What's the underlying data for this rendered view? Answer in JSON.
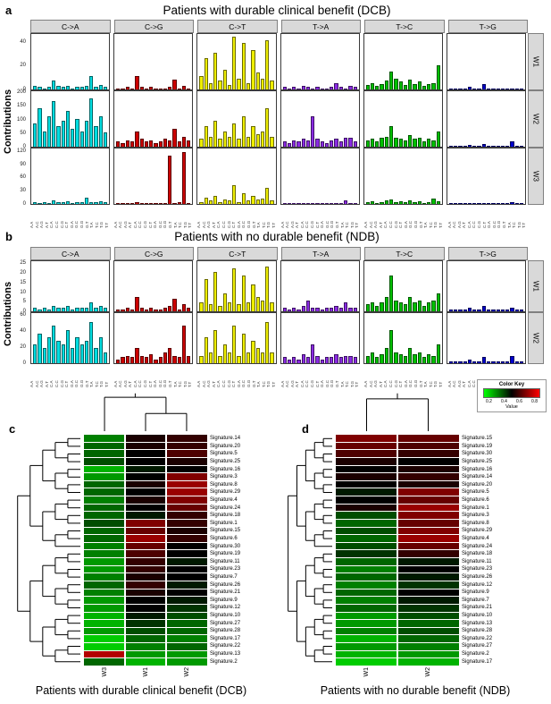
{
  "figure": {
    "panel_a_label": "a",
    "panel_b_label": "b",
    "panel_c_label": "c",
    "panel_d_label": "d"
  },
  "color_key": {
    "title": "Color Key",
    "ticks": [
      "0.2",
      "0.4",
      "0.6",
      "0.8"
    ],
    "value_label": "Value"
  },
  "chart_data": [
    {
      "id": "panel_a",
      "type": "bar",
      "title": "Patients with durable clinical benefit (DCB)",
      "ylabel": "Contributions",
      "facet_cols": [
        "C->A",
        "C->G",
        "C->T",
        "T->A",
        "T->C",
        "T->G"
      ],
      "facet_col_colors": {
        "C->A": "#00dde0",
        "C->G": "#cc0000",
        "C->T": "#eeee00",
        "T->A": "#8a2be2",
        "T->C": "#00c000",
        "T->G": "#0000cc"
      },
      "x": [
        "A.A",
        "A.C",
        "A.G",
        "A.T",
        "C.A",
        "C.C",
        "C.G",
        "C.T",
        "G.A",
        "G.C",
        "G.G",
        "G.T",
        "T.A",
        "T.C",
        "T.G",
        "T.T"
      ],
      "rows": [
        {
          "label": "W1",
          "ylim": [
            0,
            48
          ],
          "yticks": [
            0,
            20,
            40
          ],
          "series": {
            "C->A": [
              3,
              2,
              1,
              2,
              8,
              3,
              2,
              3,
              1,
              2,
              2,
              3,
              12,
              2,
              4,
              2
            ],
            "C->G": [
              1,
              1,
              2,
              1,
              12,
              2,
              1,
              2,
              1,
              1,
              1,
              2,
              9,
              1,
              3,
              1
            ],
            "C->T": [
              12,
              28,
              6,
              33,
              8,
              18,
              4,
              47,
              10,
              42,
              6,
              35,
              15,
              10,
              44,
              8
            ],
            "T->A": [
              2,
              1,
              2,
              1,
              3,
              2,
              1,
              2,
              1,
              1,
              2,
              6,
              2,
              1,
              3,
              2
            ],
            "T->C": [
              4,
              6,
              3,
              5,
              8,
              16,
              10,
              7,
              4,
              9,
              5,
              7,
              3,
              5,
              6,
              22
            ],
            "T->G": [
              1,
              1,
              0,
              1,
              2,
              1,
              1,
              5,
              1,
              1,
              1,
              1,
              0,
              1,
              1,
              1
            ]
          }
        },
        {
          "label": "W2",
          "ylim": [
            0,
            210
          ],
          "yticks": [
            0,
            50,
            100,
            150,
            200
          ],
          "series": {
            "C->A": [
              90,
              150,
              60,
              120,
              180,
              80,
              100,
              140,
              70,
              110,
              60,
              100,
              190,
              80,
              120,
              55
            ],
            "C->G": [
              20,
              15,
              25,
              20,
              60,
              30,
              20,
              25,
              15,
              20,
              30,
              25,
              70,
              20,
              40,
              25
            ],
            "C->T": [
              30,
              80,
              40,
              100,
              30,
              60,
              40,
              90,
              30,
              120,
              40,
              80,
              50,
              60,
              150,
              40
            ],
            "T->A": [
              20,
              15,
              25,
              20,
              30,
              25,
              120,
              30,
              20,
              15,
              25,
              30,
              20,
              35,
              35,
              20
            ],
            "T->C": [
              25,
              30,
              20,
              35,
              40,
              80,
              35,
              30,
              25,
              45,
              30,
              35,
              20,
              30,
              25,
              60
            ],
            "T->G": [
              5,
              3,
              4,
              3,
              8,
              4,
              3,
              10,
              3,
              4,
              3,
              5,
              3,
              20,
              4,
              5
            ]
          }
        },
        {
          "label": "W3",
          "ylim": [
            0,
            130
          ],
          "yticks": [
            0,
            30,
            60,
            90,
            120
          ],
          "series": {
            "C->A": [
              5,
              3,
              4,
              3,
              8,
              5,
              4,
              6,
              3,
              4,
              5,
              15,
              4,
              5,
              6,
              4
            ],
            "C->G": [
              3,
              2,
              3,
              2,
              5,
              3,
              2,
              3,
              2,
              2,
              3,
              118,
              3,
              4,
              125,
              3
            ],
            "C->T": [
              5,
              15,
              8,
              20,
              5,
              10,
              8,
              45,
              5,
              25,
              8,
              20,
              10,
              12,
              40,
              8
            ],
            "T->A": [
              2,
              1,
              2,
              1,
              3,
              2,
              1,
              2,
              1,
              2,
              2,
              3,
              2,
              8,
              2,
              2
            ],
            "T->C": [
              4,
              6,
              3,
              5,
              8,
              10,
              5,
              6,
              4,
              8,
              5,
              6,
              3,
              5,
              12,
              6
            ],
            "T->G": [
              1,
              1,
              1,
              1,
              2,
              1,
              1,
              2,
              1,
              1,
              1,
              1,
              1,
              5,
              1,
              1
            ]
          }
        }
      ]
    },
    {
      "id": "panel_b",
      "type": "bar",
      "title": "Patients with no durable benefit (NDB)",
      "ylabel": "Contributions",
      "facet_cols": [
        "C->A",
        "C->G",
        "C->T",
        "T->A",
        "T->C",
        "T->G"
      ],
      "facet_col_colors": {
        "C->A": "#00dde0",
        "C->G": "#cc0000",
        "C->T": "#eeee00",
        "T->A": "#8a2be2",
        "T->C": "#00c000",
        "T->G": "#0000cc"
      },
      "x": [
        "A.A",
        "A.C",
        "A.G",
        "A.T",
        "C.A",
        "C.C",
        "C.G",
        "C.T",
        "G.A",
        "G.C",
        "G.G",
        "G.T",
        "T.A",
        "T.C",
        "T.G",
        "T.T"
      ],
      "rows": [
        {
          "label": "W1",
          "ylim": [
            0,
            27
          ],
          "yticks": [
            0,
            5,
            10,
            15,
            20,
            25
          ],
          "series": {
            "C->A": [
              2,
              1,
              2,
              1,
              3,
              2,
              2,
              3,
              1,
              2,
              2,
              2,
              5,
              2,
              3,
              2
            ],
            "C->G": [
              1,
              1,
              2,
              1,
              8,
              2,
              1,
              2,
              1,
              1,
              2,
              3,
              7,
              1,
              4,
              2
            ],
            "C->T": [
              5,
              18,
              4,
              22,
              3,
              10,
              5,
              24,
              4,
              20,
              5,
              15,
              8,
              6,
              25,
              5
            ],
            "T->A": [
              2,
              1,
              2,
              1,
              3,
              6,
              2,
              2,
              1,
              2,
              2,
              3,
              2,
              5,
              2,
              2
            ],
            "T->C": [
              4,
              5,
              3,
              5,
              8,
              20,
              6,
              5,
              4,
              8,
              5,
              6,
              3,
              5,
              6,
              10
            ],
            "T->G": [
              1,
              1,
              1,
              1,
              2,
              1,
              1,
              3,
              1,
              1,
              1,
              1,
              1,
              2,
              1,
              1
            ]
          }
        },
        {
          "label": "W2",
          "ylim": [
            0,
            65
          ],
          "yticks": [
            0,
            20,
            40,
            60
          ],
          "series": {
            "C->A": [
              25,
              40,
              20,
              35,
              50,
              30,
              25,
              45,
              20,
              35,
              25,
              30,
              55,
              20,
              35,
              15
            ],
            "C->G": [
              5,
              8,
              10,
              8,
              20,
              10,
              8,
              12,
              5,
              8,
              15,
              20,
              10,
              8,
              50,
              10
            ],
            "C->T": [
              10,
              35,
              15,
              45,
              10,
              25,
              15,
              50,
              10,
              40,
              15,
              30,
              20,
              15,
              55,
              15
            ],
            "T->A": [
              8,
              5,
              8,
              5,
              12,
              8,
              25,
              10,
              5,
              8,
              8,
              12,
              8,
              10,
              10,
              8
            ],
            "T->C": [
              10,
              15,
              8,
              12,
              20,
              45,
              15,
              12,
              10,
              20,
              12,
              15,
              8,
              12,
              10,
              25
            ],
            "T->G": [
              2,
              2,
              2,
              2,
              5,
              3,
              2,
              8,
              2,
              3,
              2,
              3,
              2,
              10,
              3,
              3
            ]
          }
        }
      ]
    },
    {
      "id": "panel_c",
      "type": "heatmap",
      "caption": "Patients with durable clinical benefit (DCB)",
      "columns": [
        "W3",
        "W1",
        "W2"
      ],
      "colorscale": {
        "low": "#00ff00",
        "mid": "#000000",
        "high": "#ff0000",
        "domain": [
          0,
          1
        ]
      },
      "rows": [
        "Signature.14",
        "Signature.20",
        "Signature.5",
        "Signature.25",
        "Signature.16",
        "Signature.3",
        "Signature.8",
        "Signature.29",
        "Signature.4",
        "Signature.24",
        "Signature.18",
        "Signature.1",
        "Signature.15",
        "Signature.6",
        "Signature.30",
        "Signature.19",
        "Signature.11",
        "Signature.23",
        "Signature.7",
        "Signature.26",
        "Signature.21",
        "Signature.9",
        "Signature.12",
        "Signature.10",
        "Signature.27",
        "Signature.28",
        "Signature.17",
        "Signature.22",
        "Signature.13",
        "Signature.2"
      ],
      "values": [
        [
          0.25,
          0.55,
          0.6
        ],
        [
          0.3,
          0.55,
          0.6
        ],
        [
          0.3,
          0.5,
          0.65
        ],
        [
          0.35,
          0.5,
          0.55
        ],
        [
          0.15,
          0.45,
          0.5
        ],
        [
          0.2,
          0.5,
          0.75
        ],
        [
          0.3,
          0.55,
          0.8
        ],
        [
          0.3,
          0.5,
          0.8
        ],
        [
          0.25,
          0.55,
          0.75
        ],
        [
          0.3,
          0.5,
          0.7
        ],
        [
          0.3,
          0.45,
          0.6
        ],
        [
          0.35,
          0.75,
          0.6
        ],
        [
          0.3,
          0.7,
          0.55
        ],
        [
          0.3,
          0.8,
          0.6
        ],
        [
          0.25,
          0.7,
          0.5
        ],
        [
          0.25,
          0.65,
          0.5
        ],
        [
          0.2,
          0.6,
          0.45
        ],
        [
          0.2,
          0.6,
          0.5
        ],
        [
          0.25,
          0.55,
          0.5
        ],
        [
          0.3,
          0.6,
          0.45
        ],
        [
          0.25,
          0.55,
          0.5
        ],
        [
          0.2,
          0.5,
          0.45
        ],
        [
          0.2,
          0.5,
          0.4
        ],
        [
          0.15,
          0.45,
          0.35
        ],
        [
          0.15,
          0.4,
          0.3
        ],
        [
          0.2,
          0.35,
          0.3
        ],
        [
          0.1,
          0.3,
          0.25
        ],
        [
          0.1,
          0.25,
          0.3
        ],
        [
          0.85,
          0.2,
          0.2
        ],
        [
          0.3,
          0.15,
          0.2
        ]
      ]
    },
    {
      "id": "panel_d",
      "type": "heatmap",
      "caption": "Patients with no durable benefit (NDB)",
      "columns": [
        "W1",
        "W2"
      ],
      "colorscale": {
        "low": "#00ff00",
        "mid": "#000000",
        "high": "#ff0000",
        "domain": [
          0,
          1
        ]
      },
      "rows": [
        "Signature.15",
        "Signature.19",
        "Signature.30",
        "Signature.25",
        "Signature.16",
        "Signature.14",
        "Signature.20",
        "Signature.5",
        "Signature.6",
        "Signature.1",
        "Signature.3",
        "Signature.8",
        "Signature.29",
        "Signature.4",
        "Signature.24",
        "Signature.18",
        "Signature.11",
        "Signature.23",
        "Signature.26",
        "Signature.12",
        "Signature.9",
        "Signature.7",
        "Signature.21",
        "Signature.10",
        "Signature.13",
        "Signature.28",
        "Signature.22",
        "Signature.27",
        "Signature.2",
        "Signature.17"
      ],
      "values": [
        [
          0.75,
          0.7
        ],
        [
          0.7,
          0.65
        ],
        [
          0.65,
          0.6
        ],
        [
          0.55,
          0.5
        ],
        [
          0.5,
          0.55
        ],
        [
          0.55,
          0.6
        ],
        [
          0.5,
          0.55
        ],
        [
          0.45,
          0.75
        ],
        [
          0.5,
          0.7
        ],
        [
          0.55,
          0.8
        ],
        [
          0.35,
          0.75
        ],
        [
          0.3,
          0.7
        ],
        [
          0.35,
          0.75
        ],
        [
          0.3,
          0.8
        ],
        [
          0.35,
          0.7
        ],
        [
          0.4,
          0.6
        ],
        [
          0.3,
          0.45
        ],
        [
          0.25,
          0.5
        ],
        [
          0.3,
          0.45
        ],
        [
          0.25,
          0.4
        ],
        [
          0.3,
          0.5
        ],
        [
          0.25,
          0.45
        ],
        [
          0.3,
          0.4
        ],
        [
          0.2,
          0.35
        ],
        [
          0.2,
          0.3
        ],
        [
          0.25,
          0.35
        ],
        [
          0.15,
          0.3
        ],
        [
          0.2,
          0.25
        ],
        [
          0.15,
          0.2
        ],
        [
          0.1,
          0.15
        ]
      ]
    }
  ]
}
